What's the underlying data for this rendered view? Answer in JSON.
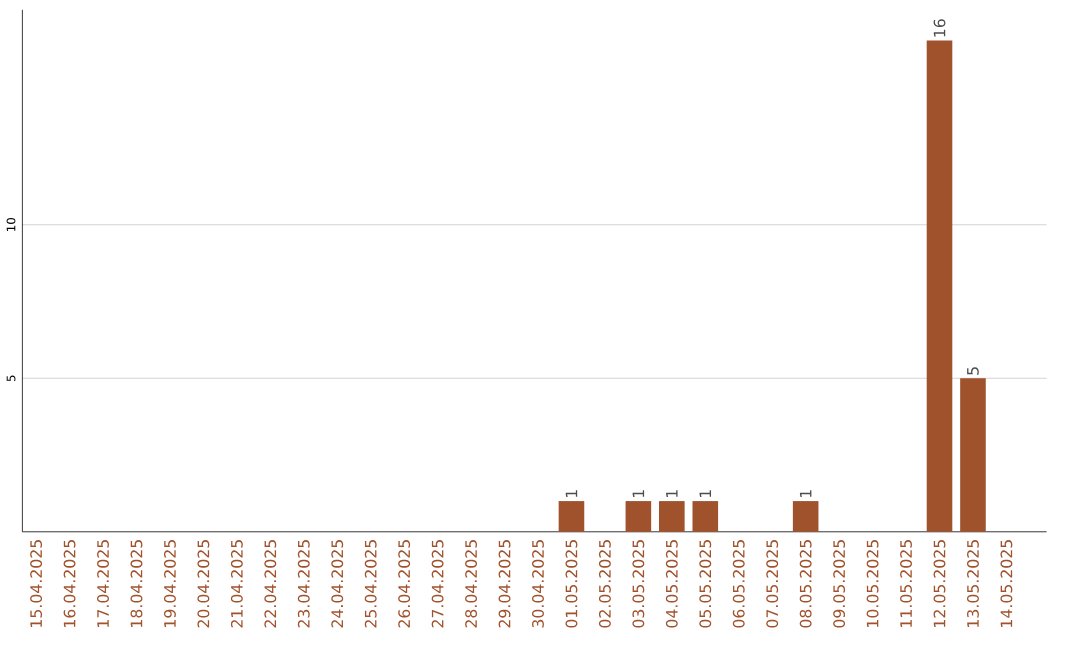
{
  "chart_data": {
    "type": "bar",
    "categories": [
      "15.04.2025",
      "16.04.2025",
      "17.04.2025",
      "18.04.2025",
      "19.04.2025",
      "20.04.2025",
      "21.04.2025",
      "22.04.2025",
      "23.04.2025",
      "24.04.2025",
      "25.04.2025",
      "26.04.2025",
      "27.04.2025",
      "28.04.2025",
      "29.04.2025",
      "30.04.2025",
      "01.05.2025",
      "02.05.2025",
      "03.05.2025",
      "04.05.2025",
      "05.05.2025",
      "06.05.2025",
      "07.05.2025",
      "08.05.2025",
      "09.05.2025",
      "10.05.2025",
      "11.05.2025",
      "12.05.2025",
      "13.05.2025",
      "14.05.2025"
    ],
    "values": [
      0,
      0,
      0,
      0,
      0,
      0,
      0,
      0,
      0,
      0,
      0,
      0,
      0,
      0,
      0,
      0,
      1,
      0,
      1,
      1,
      1,
      0,
      0,
      1,
      0,
      0,
      0,
      16,
      5,
      0
    ],
    "value_labels": [
      null,
      null,
      null,
      null,
      null,
      null,
      null,
      null,
      null,
      null,
      null,
      null,
      null,
      null,
      null,
      null,
      "1",
      null,
      "1",
      "1",
      "1",
      null,
      null,
      "1",
      null,
      null,
      null,
      "16",
      "5",
      null
    ],
    "color": "#a0522d",
    "ylim": [
      0,
      17
    ],
    "yticks": [
      5,
      10
    ],
    "grid": "y"
  }
}
